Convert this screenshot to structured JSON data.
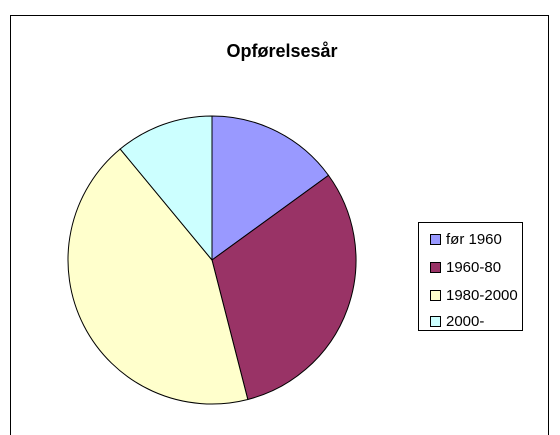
{
  "chart_data": {
    "type": "pie",
    "title": "Opførelsesår",
    "categories": [
      "før 1960",
      "1960-80",
      "1980-2000",
      "2000-"
    ],
    "values": [
      15,
      31,
      43,
      11
    ],
    "colors": [
      "#9999ff",
      "#993366",
      "#ffffcc",
      "#ccffff"
    ],
    "legend": "right"
  }
}
